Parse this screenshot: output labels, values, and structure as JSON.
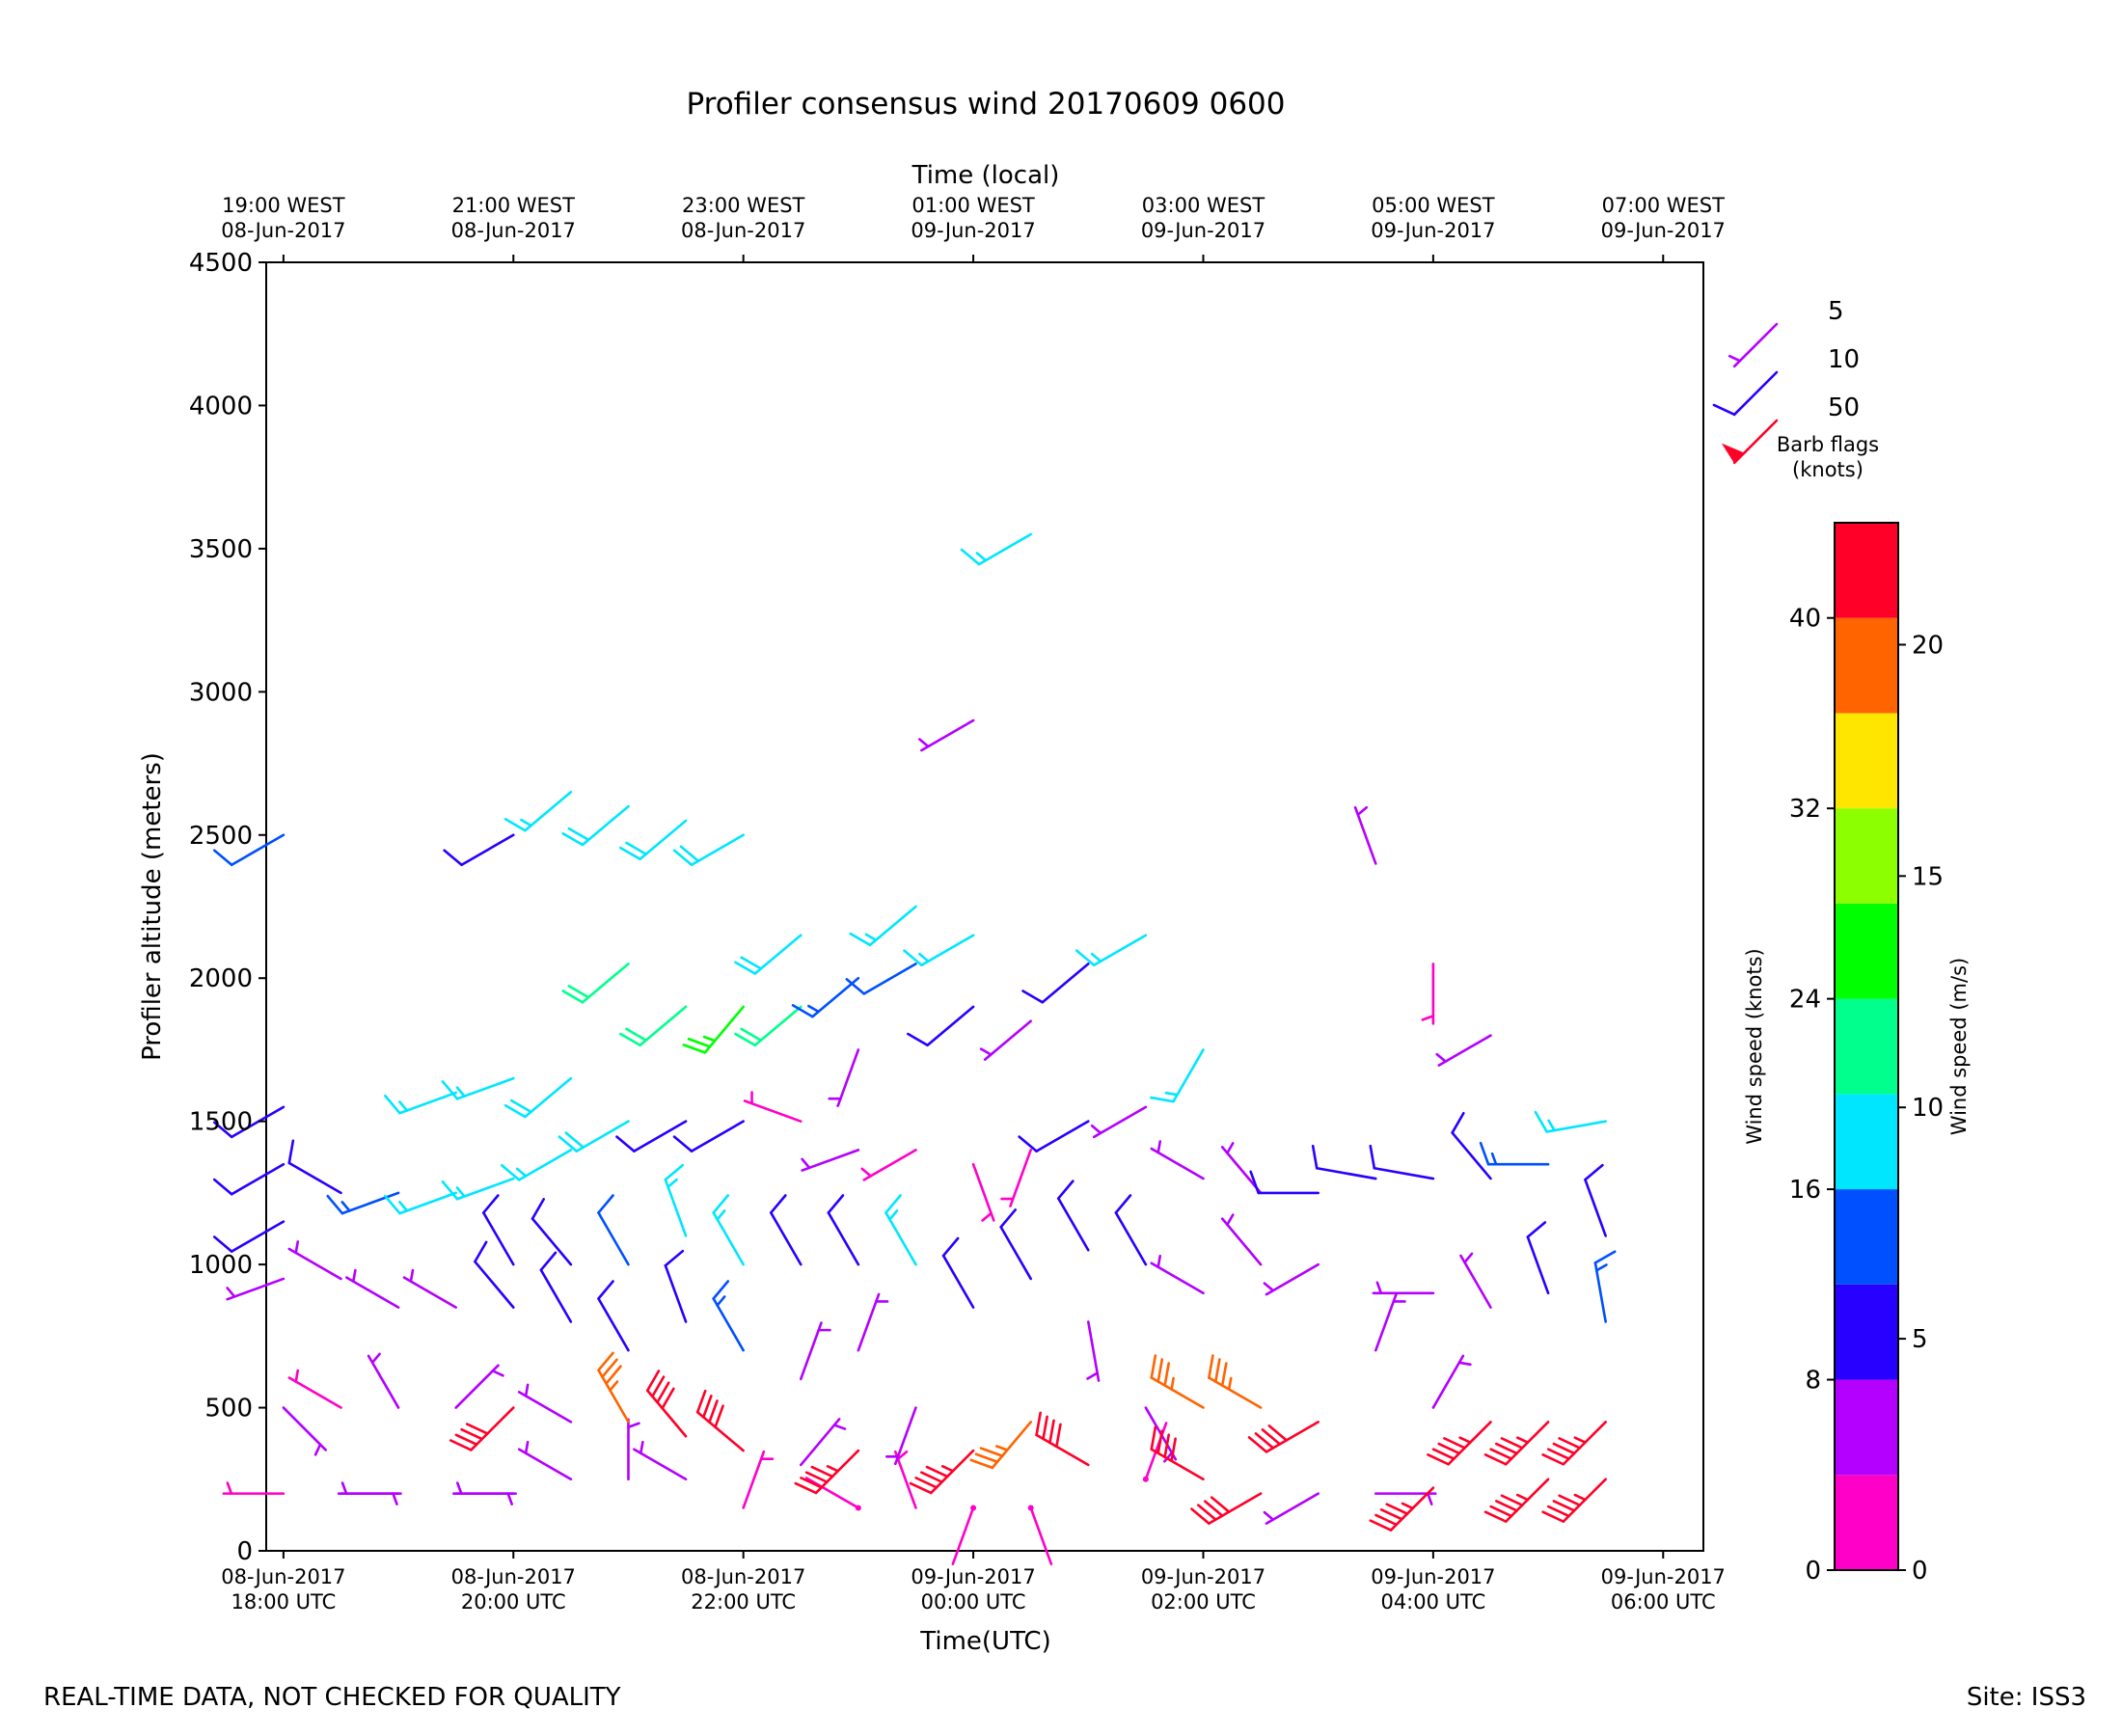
{
  "chart_data": {
    "type": "wind-barb",
    "title": "Profiler consensus wind 20170609 0600",
    "top_axis_title": "Time (local)",
    "xlabel": "Time(UTC)",
    "ylabel": "Profiler altitude (meters)",
    "x_range_hours_utc": [
      -0.15,
      12.35
    ],
    "ylim": [
      0,
      4500
    ],
    "y_ticks": [
      0,
      500,
      1000,
      1500,
      2000,
      2500,
      3000,
      3500,
      4000,
      4500
    ],
    "bottom_ticks": [
      {
        "hour": 0,
        "line1": "08-Jun-2017",
        "line2": "18:00 UTC"
      },
      {
        "hour": 2,
        "line1": "08-Jun-2017",
        "line2": "20:00 UTC"
      },
      {
        "hour": 4,
        "line1": "08-Jun-2017",
        "line2": "22:00 UTC"
      },
      {
        "hour": 6,
        "line1": "09-Jun-2017",
        "line2": "00:00 UTC"
      },
      {
        "hour": 8,
        "line1": "09-Jun-2017",
        "line2": "02:00 UTC"
      },
      {
        "hour": 10,
        "line1": "09-Jun-2017",
        "line2": "04:00 UTC"
      },
      {
        "hour": 12,
        "line1": "09-Jun-2017",
        "line2": "06:00 UTC"
      }
    ],
    "top_ticks": [
      {
        "hour": 0,
        "line1": "19:00 WEST",
        "line2": "08-Jun-2017"
      },
      {
        "hour": 2,
        "line1": "21:00 WEST",
        "line2": "08-Jun-2017"
      },
      {
        "hour": 4,
        "line1": "23:00 WEST",
        "line2": "08-Jun-2017"
      },
      {
        "hour": 6,
        "line1": "01:00 WEST",
        "line2": "09-Jun-2017"
      },
      {
        "hour": 8,
        "line1": "03:00 WEST",
        "line2": "09-Jun-2017"
      },
      {
        "hour": 10,
        "line1": "05:00 WEST",
        "line2": "09-Jun-2017"
      },
      {
        "hour": 12,
        "line1": "07:00 WEST",
        "line2": "09-Jun-2017"
      }
    ],
    "barb_legend": {
      "title_line1": "Barb flags",
      "title_line2": "(knots)",
      "entries": [
        {
          "label": "5",
          "knots": 5
        },
        {
          "label": "10",
          "knots": 10
        },
        {
          "label": "50",
          "knots": 50
        }
      ]
    },
    "colorbar": {
      "min_knots": 0,
      "max_knots": 44,
      "bands_knots": [
        0,
        4,
        8,
        12,
        16,
        20,
        24,
        28,
        32,
        36,
        40,
        44
      ],
      "band_colors": [
        "#ff00c8",
        "#b400ff",
        "#2800ff",
        "#0050ff",
        "#00e6ff",
        "#00ff8c",
        "#00ff00",
        "#8cff00",
        "#ffe600",
        "#ff6400",
        "#ff0028"
      ],
      "knots_ticks": [
        0,
        8,
        16,
        24,
        32,
        40
      ],
      "ms_ticks": [
        0,
        5,
        10,
        15,
        20
      ],
      "knots_label": "Wind speed (knots)",
      "ms_label": "Wind speed (m/s)"
    },
    "series_sample_times_hours": [
      0,
      0.5,
      1.0,
      1.5,
      2.0,
      2.5,
      3.0,
      3.5,
      4.0,
      4.5,
      5.0,
      5.5,
      6.0,
      6.5,
      7.0,
      7.5,
      8.0,
      8.5,
      9.0,
      9.5,
      10.0,
      10.5,
      11.0,
      11.5
    ],
    "barbs": [
      {
        "t": 0.0,
        "alt": 200,
        "spd": 3,
        "dir": 270
      },
      {
        "t": 0.0,
        "alt": 500,
        "spd": 5,
        "dir": 135
      },
      {
        "t": 0.0,
        "alt": 950,
        "spd": 6,
        "dir": 250
      },
      {
        "t": 0.0,
        "alt": 1150,
        "spd": 8,
        "dir": 240
      },
      {
        "t": 0.0,
        "alt": 1350,
        "spd": 8,
        "dir": 240
      },
      {
        "t": 0.0,
        "alt": 1550,
        "spd": 9,
        "dir": 240
      },
      {
        "t": 0.0,
        "alt": 2500,
        "spd": 12,
        "dir": 240
      },
      {
        "t": 0.5,
        "alt": 200,
        "spd": 4,
        "dir": 90
      },
      {
        "t": 0.5,
        "alt": 500,
        "spd": 3,
        "dir": 300
      },
      {
        "t": 0.5,
        "alt": 950,
        "spd": 7,
        "dir": 300
      },
      {
        "t": 0.5,
        "alt": 1250,
        "spd": 9,
        "dir": 300
      },
      {
        "t": 1.0,
        "alt": 200,
        "spd": 4,
        "dir": 270
      },
      {
        "t": 1.0,
        "alt": 500,
        "spd": 6,
        "dir": 330
      },
      {
        "t": 1.0,
        "alt": 850,
        "spd": 7,
        "dir": 300
      },
      {
        "t": 1.0,
        "alt": 1250,
        "spd": 15,
        "dir": 250
      },
      {
        "t": 1.5,
        "alt": 200,
        "spd": 5,
        "dir": 90
      },
      {
        "t": 1.5,
        "alt": 500,
        "spd": 5,
        "dir": 45
      },
      {
        "t": 1.5,
        "alt": 850,
        "spd": 7,
        "dir": 300
      },
      {
        "t": 1.5,
        "alt": 1250,
        "spd": 16,
        "dir": 250
      },
      {
        "t": 1.5,
        "alt": 1600,
        "spd": 16,
        "dir": 250
      },
      {
        "t": 2.0,
        "alt": 200,
        "spd": 5,
        "dir": 270
      },
      {
        "t": 2.0,
        "alt": 500,
        "spd": 41,
        "dir": 225
      },
      {
        "t": 2.0,
        "alt": 850,
        "spd": 8,
        "dir": 320
      },
      {
        "t": 2.0,
        "alt": 1000,
        "spd": 9,
        "dir": 330
      },
      {
        "t": 2.0,
        "alt": 1300,
        "spd": 16,
        "dir": 250
      },
      {
        "t": 2.0,
        "alt": 1650,
        "spd": 16,
        "dir": 250
      },
      {
        "t": 2.0,
        "alt": 2500,
        "spd": 10,
        "dir": 240
      },
      {
        "t": 2.5,
        "alt": 250,
        "spd": 4,
        "dir": 300
      },
      {
        "t": 2.5,
        "alt": 450,
        "spd": 6,
        "dir": 300
      },
      {
        "t": 2.5,
        "alt": 800,
        "spd": 8,
        "dir": 330
      },
      {
        "t": 2.5,
        "alt": 1000,
        "spd": 10,
        "dir": 320
      },
      {
        "t": 2.5,
        "alt": 1400,
        "spd": 17,
        "dir": 240
      },
      {
        "t": 2.5,
        "alt": 1650,
        "spd": 18,
        "dir": 230
      },
      {
        "t": 2.5,
        "alt": 2650,
        "spd": 17,
        "dir": 230
      },
      {
        "t": 3.0,
        "alt": 250,
        "spd": 4,
        "dir": 0
      },
      {
        "t": 3.0,
        "alt": 450,
        "spd": 36,
        "dir": 330
      },
      {
        "t": 3.0,
        "alt": 700,
        "spd": 9,
        "dir": 330
      },
      {
        "t": 3.0,
        "alt": 1000,
        "spd": 12,
        "dir": 330
      },
      {
        "t": 3.0,
        "alt": 1500,
        "spd": 18,
        "dir": 240
      },
      {
        "t": 3.0,
        "alt": 2050,
        "spd": 20,
        "dir": 230
      },
      {
        "t": 3.0,
        "alt": 2600,
        "spd": 18,
        "dir": 230
      },
      {
        "t": 3.5,
        "alt": 250,
        "spd": 5,
        "dir": 300
      },
      {
        "t": 3.5,
        "alt": 400,
        "spd": 40,
        "dir": 320
      },
      {
        "t": 3.5,
        "alt": 800,
        "spd": 11,
        "dir": 340
      },
      {
        "t": 3.5,
        "alt": 1100,
        "spd": 16,
        "dir": 340
      },
      {
        "t": 3.5,
        "alt": 1500,
        "spd": 11,
        "dir": 240
      },
      {
        "t": 3.5,
        "alt": 1900,
        "spd": 22,
        "dir": 230
      },
      {
        "t": 3.5,
        "alt": 2550,
        "spd": 18,
        "dir": 230
      },
      {
        "t": 4.0,
        "alt": 150,
        "spd": 3,
        "dir": 20
      },
      {
        "t": 4.0,
        "alt": 350,
        "spd": 42,
        "dir": 310
      },
      {
        "t": 4.0,
        "alt": 700,
        "spd": 13,
        "dir": 330
      },
      {
        "t": 4.0,
        "alt": 1000,
        "spd": 16,
        "dir": 330
      },
      {
        "t": 4.0,
        "alt": 1500,
        "spd": 11,
        "dir": 240
      },
      {
        "t": 4.0,
        "alt": 1900,
        "spd": 24,
        "dir": 220
      },
      {
        "t": 4.0,
        "alt": 2500,
        "spd": 18,
        "dir": 240
      },
      {
        "t": 4.5,
        "alt": 300,
        "spd": 4,
        "dir": 40
      },
      {
        "t": 4.5,
        "alt": 600,
        "spd": 6,
        "dir": 20
      },
      {
        "t": 4.5,
        "alt": 1000,
        "spd": 10,
        "dir": 330
      },
      {
        "t": 4.5,
        "alt": 1500,
        "spd": 3,
        "dir": 290
      },
      {
        "t": 4.5,
        "alt": 1900,
        "spd": 22,
        "dir": 230
      },
      {
        "t": 4.5,
        "alt": 2150,
        "spd": 18,
        "dir": 230
      },
      {
        "t": 5.0,
        "alt": 150,
        "spd": 2,
        "dir": 300
      },
      {
        "t": 5.0,
        "alt": 350,
        "spd": 44,
        "dir": 225
      },
      {
        "t": 5.0,
        "alt": 700,
        "spd": 6,
        "dir": 20
      },
      {
        "t": 5.0,
        "alt": 1000,
        "spd": 9,
        "dir": 330
      },
      {
        "t": 5.0,
        "alt": 1400,
        "spd": 4,
        "dir": 250
      },
      {
        "t": 5.0,
        "alt": 1750,
        "spd": 4,
        "dir": 200
      },
      {
        "t": 5.0,
        "alt": 2000,
        "spd": 14,
        "dir": 230
      },
      {
        "t": 5.5,
        "alt": 150,
        "spd": 3,
        "dir": 340
      },
      {
        "t": 5.5,
        "alt": 500,
        "spd": 5,
        "dir": 200
      },
      {
        "t": 5.5,
        "alt": 1000,
        "spd": 16,
        "dir": 330
      },
      {
        "t": 5.5,
        "alt": 1400,
        "spd": 3,
        "dir": 240
      },
      {
        "t": 5.5,
        "alt": 2050,
        "spd": 12,
        "dir": 240
      },
      {
        "t": 5.5,
        "alt": 2250,
        "spd": 16,
        "dir": 230
      },
      {
        "t": 6.0,
        "alt": 150,
        "spd": 2,
        "dir": 200
      },
      {
        "t": 6.0,
        "alt": 350,
        "spd": 44,
        "dir": 225
      },
      {
        "t": 6.0,
        "alt": 850,
        "spd": 9,
        "dir": 330
      },
      {
        "t": 6.0,
        "alt": 1350,
        "spd": 3,
        "dir": 160
      },
      {
        "t": 6.0,
        "alt": 1900,
        "spd": 8,
        "dir": 230
      },
      {
        "t": 6.0,
        "alt": 2150,
        "spd": 16,
        "dir": 240
      },
      {
        "t": 6.0,
        "alt": 2900,
        "spd": 7,
        "dir": 240
      },
      {
        "t": 6.5,
        "alt": 150,
        "spd": 2,
        "dir": 160
      },
      {
        "t": 6.5,
        "alt": 450,
        "spd": 37,
        "dir": 220
      },
      {
        "t": 6.5,
        "alt": 950,
        "spd": 9,
        "dir": 330
      },
      {
        "t": 6.5,
        "alt": 1400,
        "spd": 3,
        "dir": 200
      },
      {
        "t": 6.5,
        "alt": 1850,
        "spd": 6,
        "dir": 230
      },
      {
        "t": 6.5,
        "alt": 3550,
        "spd": 17,
        "dir": 240
      },
      {
        "t": 7.0,
        "alt": 300,
        "spd": 40,
        "dir": 300
      },
      {
        "t": 7.0,
        "alt": 800,
        "spd": 4,
        "dir": 170
      },
      {
        "t": 7.0,
        "alt": 1050,
        "spd": 8,
        "dir": 330
      },
      {
        "t": 7.0,
        "alt": 1500,
        "spd": 10,
        "dir": 240
      },
      {
        "t": 7.0,
        "alt": 2050,
        "spd": 8,
        "dir": 230
      },
      {
        "t": 7.5,
        "alt": 250,
        "spd": 2,
        "dir": 20
      },
      {
        "t": 7.5,
        "alt": 500,
        "spd": 4,
        "dir": 150
      },
      {
        "t": 7.5,
        "alt": 1000,
        "spd": 10,
        "dir": 330
      },
      {
        "t": 7.5,
        "alt": 1550,
        "spd": 4,
        "dir": 240
      },
      {
        "t": 7.5,
        "alt": 2150,
        "spd": 16,
        "dir": 240
      },
      {
        "t": 8.0,
        "alt": 250,
        "spd": 41,
        "dir": 300
      },
      {
        "t": 8.0,
        "alt": 500,
        "spd": 37,
        "dir": 300
      },
      {
        "t": 8.0,
        "alt": 900,
        "spd": 5,
        "dir": 300
      },
      {
        "t": 8.0,
        "alt": 1300,
        "spd": 4,
        "dir": 300
      },
      {
        "t": 8.0,
        "alt": 1750,
        "spd": 16,
        "dir": 210
      },
      {
        "t": 8.5,
        "alt": 200,
        "spd": 41,
        "dir": 240
      },
      {
        "t": 8.5,
        "alt": 500,
        "spd": 37,
        "dir": 300
      },
      {
        "t": 8.5,
        "alt": 1000,
        "spd": 4,
        "dir": 320
      },
      {
        "t": 8.5,
        "alt": 1250,
        "spd": 5,
        "dir": 320
      },
      {
        "t": 9.0,
        "alt": 200,
        "spd": 4,
        "dir": 240
      },
      {
        "t": 9.0,
        "alt": 450,
        "spd": 41,
        "dir": 240
      },
      {
        "t": 9.0,
        "alt": 1000,
        "spd": 4,
        "dir": 240
      },
      {
        "t": 9.0,
        "alt": 1250,
        "spd": 8,
        "dir": 270
      },
      {
        "t": 9.5,
        "alt": 200,
        "spd": 4,
        "dir": 90
      },
      {
        "t": 9.5,
        "alt": 700,
        "spd": 7,
        "dir": 20
      },
      {
        "t": 9.5,
        "alt": 1300,
        "spd": 9,
        "dir": 280
      },
      {
        "t": 9.5,
        "alt": 2400,
        "spd": 6,
        "dir": 340
      },
      {
        "t": 10.0,
        "alt": 220,
        "spd": 44,
        "dir": 225
      },
      {
        "t": 10.0,
        "alt": 500,
        "spd": 4,
        "dir": 30
      },
      {
        "t": 10.0,
        "alt": 900,
        "spd": 4,
        "dir": 270
      },
      {
        "t": 10.0,
        "alt": 1300,
        "spd": 9,
        "dir": 280
      },
      {
        "t": 10.0,
        "alt": 2050,
        "spd": 3,
        "dir": 180
      },
      {
        "t": 10.5,
        "alt": 450,
        "spd": 44,
        "dir": 225
      },
      {
        "t": 10.5,
        "alt": 850,
        "spd": 4,
        "dir": 330
      },
      {
        "t": 10.5,
        "alt": 1300,
        "spd": 9,
        "dir": 320
      },
      {
        "t": 10.5,
        "alt": 1800,
        "spd": 4,
        "dir": 240
      },
      {
        "t": 11.0,
        "alt": 250,
        "spd": 44,
        "dir": 225
      },
      {
        "t": 11.0,
        "alt": 450,
        "spd": 44,
        "dir": 225
      },
      {
        "t": 11.0,
        "alt": 900,
        "spd": 10,
        "dir": 340
      },
      {
        "t": 11.0,
        "alt": 1350,
        "spd": 13,
        "dir": 270
      },
      {
        "t": 11.5,
        "alt": 250,
        "spd": 44,
        "dir": 225
      },
      {
        "t": 11.5,
        "alt": 450,
        "spd": 44,
        "dir": 225
      },
      {
        "t": 11.5,
        "alt": 800,
        "spd": 13,
        "dir": 350
      },
      {
        "t": 11.5,
        "alt": 1100,
        "spd": 10,
        "dir": 340
      },
      {
        "t": 11.5,
        "alt": 1500,
        "spd": 16,
        "dir": 260
      }
    ]
  },
  "footer": {
    "disclaimer": "REAL-TIME DATA, NOT CHECKED FOR QUALITY",
    "site": "Site: ISS3"
  }
}
